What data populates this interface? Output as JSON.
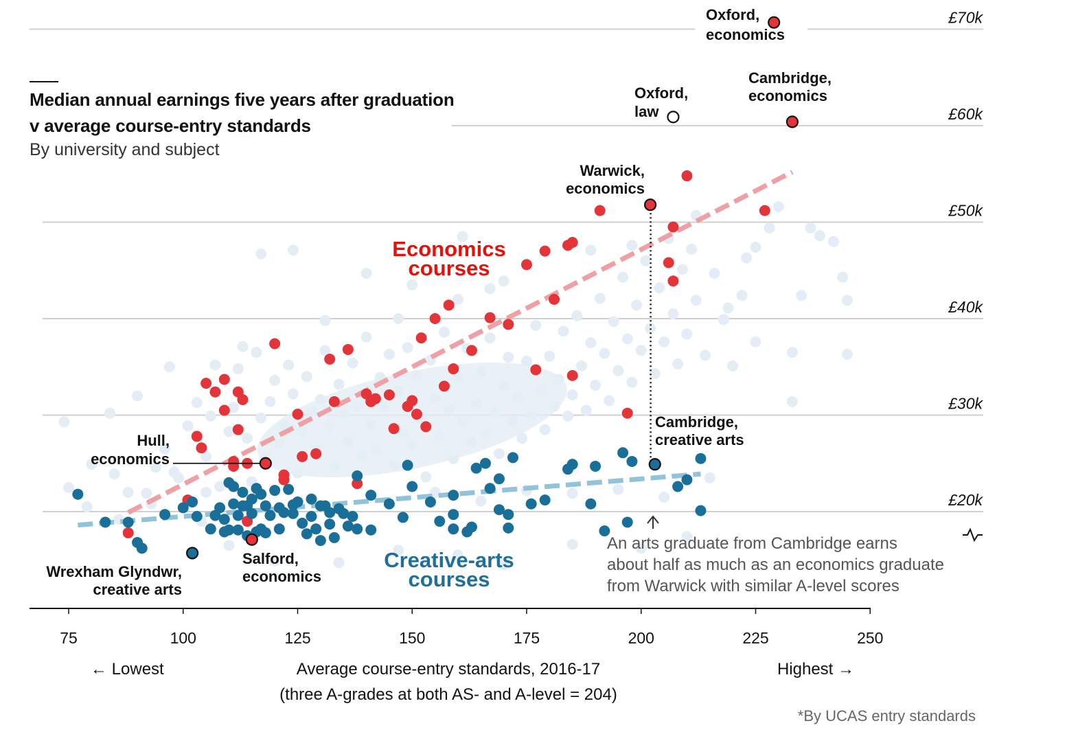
{
  "title": "Median annual earnings five years after graduation v average course-entry standards",
  "subtitle": "By university and subject",
  "colors": {
    "economics": "#e3343a",
    "creative_arts": "#1a6f98",
    "other": "#e4edf5",
    "economics_trend": "#eea0a4",
    "arts_trend": "#93c3d9",
    "grid": "#cfcfcf"
  },
  "chart_data": {
    "type": "scatter",
    "title": "Median annual earnings five years after graduation v average course-entry standards",
    "subtitle": "By university and subject",
    "xlabel": "Average course-entry standards, 2016-17",
    "xlabel_note": "(three A-grades at both AS- and A-level = 204)",
    "x_left_label": "← Lowest",
    "x_right_label": "Highest →",
    "xlim": [
      75,
      250
    ],
    "ylim": [
      10,
      72
    ],
    "x_ticks": [
      75,
      100,
      125,
      150,
      175,
      200,
      225,
      250
    ],
    "x_tick_labels": [
      "75",
      "100",
      "125",
      "150",
      "175",
      "200",
      "225",
      "250"
    ],
    "y_ticks": [
      20,
      30,
      40,
      50,
      60,
      70
    ],
    "y_tick_labels": [
      "£20k",
      "£30k",
      "£40k",
      "£50k",
      "£60k",
      "£70k"
    ],
    "y_unit": "£ thousands",
    "source_note": "*By UCAS entry standards",
    "series": [
      {
        "name": "Economics courses",
        "color": "#e3343a",
        "points": [
          [
            88,
            17.8
          ],
          [
            101,
            21.2
          ],
          [
            103,
            27.8
          ],
          [
            104,
            26.6
          ],
          [
            105,
            33.3
          ],
          [
            107,
            32.4
          ],
          [
            109,
            30.5
          ],
          [
            109,
            33.7
          ],
          [
            111,
            25.2
          ],
          [
            111,
            24.7
          ],
          [
            112,
            28.5
          ],
          [
            112,
            32.4
          ],
          [
            113,
            31.6
          ],
          [
            114,
            25.0
          ],
          [
            114,
            19.0
          ],
          [
            120,
            37.4
          ],
          [
            122,
            23.8
          ],
          [
            122,
            23.3
          ],
          [
            125,
            30.1
          ],
          [
            126,
            25.7
          ],
          [
            129,
            26.0
          ],
          [
            132,
            35.8
          ],
          [
            133,
            31.4
          ],
          [
            136,
            36.8
          ],
          [
            138,
            22.9
          ],
          [
            140,
            32.2
          ],
          [
            141,
            31.4
          ],
          [
            142,
            31.7
          ],
          [
            145,
            32.1
          ],
          [
            146,
            28.6
          ],
          [
            149,
            30.9
          ],
          [
            150,
            31.5
          ],
          [
            151,
            30.1
          ],
          [
            152,
            38.0
          ],
          [
            153,
            28.8
          ],
          [
            155,
            40.0
          ],
          [
            157,
            33.0
          ],
          [
            158,
            41.4
          ],
          [
            159,
            34.8
          ],
          [
            163,
            36.7
          ],
          [
            167,
            40.1
          ],
          [
            171,
            39.4
          ],
          [
            175,
            45.6
          ],
          [
            177,
            34.7
          ],
          [
            179,
            47.0
          ],
          [
            181,
            42.0
          ],
          [
            184,
            47.6
          ],
          [
            185,
            47.9
          ],
          [
            185,
            34.1
          ],
          [
            191,
            51.2
          ],
          [
            197,
            30.2
          ],
          [
            206,
            45.8
          ],
          [
            207,
            49.5
          ],
          [
            207,
            43.9
          ],
          [
            210,
            54.8
          ],
          [
            227,
            51.2
          ]
        ]
      },
      {
        "name": "Creative-arts courses",
        "color": "#1a6f98",
        "points": [
          [
            77,
            21.8
          ],
          [
            83,
            18.9
          ],
          [
            88,
            18.9
          ],
          [
            90,
            16.8
          ],
          [
            91,
            16.2
          ],
          [
            96,
            19.7
          ],
          [
            100,
            20.4
          ],
          [
            102,
            21.0
          ],
          [
            103,
            19.5
          ],
          [
            106,
            18.2
          ],
          [
            107,
            19.6
          ],
          [
            108,
            20.4
          ],
          [
            109,
            19.2
          ],
          [
            109,
            17.9
          ],
          [
            110,
            23.0
          ],
          [
            110,
            18.1
          ],
          [
            111,
            22.6
          ],
          [
            111,
            20.8
          ],
          [
            112,
            19.6
          ],
          [
            112,
            18.1
          ],
          [
            113,
            22.0
          ],
          [
            113,
            20.6
          ],
          [
            114,
            20.6
          ],
          [
            114,
            17.5
          ],
          [
            115,
            21.3
          ],
          [
            115,
            19.8
          ],
          [
            116,
            17.9
          ],
          [
            116,
            22.4
          ],
          [
            117,
            21.8
          ],
          [
            117,
            18.2
          ],
          [
            118,
            20.6
          ],
          [
            118,
            17.8
          ],
          [
            119,
            19.6
          ],
          [
            120,
            22.2
          ],
          [
            121,
            20.4
          ],
          [
            121,
            18.2
          ],
          [
            122,
            19.9
          ],
          [
            123,
            22.3
          ],
          [
            124,
            20.7
          ],
          [
            124,
            19.8
          ],
          [
            125,
            21.0
          ],
          [
            126,
            18.8
          ],
          [
            127,
            17.7
          ],
          [
            128,
            21.3
          ],
          [
            128,
            19.5
          ],
          [
            129,
            18.2
          ],
          [
            130,
            20.6
          ],
          [
            130,
            17.0
          ],
          [
            131,
            20.6
          ],
          [
            132,
            19.9
          ],
          [
            132,
            18.7
          ],
          [
            133,
            17.3
          ],
          [
            134,
            20.3
          ],
          [
            135,
            19.8
          ],
          [
            136,
            18.5
          ],
          [
            137,
            19.5
          ],
          [
            138,
            18.2
          ],
          [
            138,
            23.7
          ],
          [
            141,
            21.7
          ],
          [
            141,
            18.1
          ],
          [
            145,
            20.8
          ],
          [
            148,
            19.4
          ],
          [
            149,
            24.8
          ],
          [
            150,
            22.6
          ],
          [
            154,
            21.0
          ],
          [
            156,
            19.0
          ],
          [
            159,
            18.2
          ],
          [
            159,
            19.7
          ],
          [
            159,
            21.7
          ],
          [
            162,
            17.9
          ],
          [
            163,
            18.4
          ],
          [
            164,
            24.5
          ],
          [
            166,
            25.0
          ],
          [
            167,
            22.4
          ],
          [
            169,
            20.2
          ],
          [
            169,
            23.4
          ],
          [
            171,
            19.7
          ],
          [
            171,
            18.3
          ],
          [
            172,
            25.6
          ],
          [
            176,
            20.8
          ],
          [
            179,
            21.2
          ],
          [
            184,
            24.4
          ],
          [
            185,
            24.9
          ],
          [
            189,
            20.8
          ],
          [
            190,
            24.7
          ],
          [
            192,
            18.0
          ],
          [
            196,
            26.1
          ],
          [
            197,
            18.9
          ],
          [
            198,
            25.2
          ],
          [
            208,
            22.6
          ],
          [
            210,
            23.3
          ],
          [
            213,
            20.1
          ],
          [
            213,
            25.5
          ]
        ]
      }
    ],
    "background_points": [
      [
        94,
        24.6
      ],
      [
        97,
        35.0
      ],
      [
        101,
        28.9
      ],
      [
        103,
        31.3
      ],
      [
        105,
        25.7
      ],
      [
        106,
        29.9
      ],
      [
        107,
        35.2
      ],
      [
        108,
        22.6
      ],
      [
        110,
        28.3
      ],
      [
        111,
        30.8
      ],
      [
        112,
        34.8
      ],
      [
        113,
        37.1
      ],
      [
        114,
        27.6
      ],
      [
        115,
        23.1
      ],
      [
        116,
        36.5
      ],
      [
        117,
        29.7
      ],
      [
        118,
        25.7
      ],
      [
        119,
        31.4
      ],
      [
        120,
        33.6
      ],
      [
        121,
        27.0
      ],
      [
        122,
        29.0
      ],
      [
        123,
        35.2
      ],
      [
        124,
        32.2
      ],
      [
        125,
        24.0
      ],
      [
        126,
        28.2
      ],
      [
        127,
        34.0
      ],
      [
        128,
        30.4
      ],
      [
        129,
        26.6
      ],
      [
        130,
        31.6
      ],
      [
        131,
        36.7
      ],
      [
        132,
        28.9
      ],
      [
        133,
        24.6
      ],
      [
        134,
        33.2
      ],
      [
        135,
        30.1
      ],
      [
        136,
        27.3
      ],
      [
        137,
        35.4
      ],
      [
        138,
        31.0
      ],
      [
        139,
        25.8
      ],
      [
        140,
        38.1
      ],
      [
        141,
        29.0
      ],
      [
        142,
        26.4
      ],
      [
        143,
        33.9
      ],
      [
        144,
        30.9
      ],
      [
        145,
        36.3
      ],
      [
        146,
        24.8
      ],
      [
        147,
        32.5
      ],
      [
        148,
        28.1
      ],
      [
        149,
        37.0
      ],
      [
        150,
        26.9
      ],
      [
        151,
        34.1
      ],
      [
        152,
        29.6
      ],
      [
        153,
        23.6
      ],
      [
        154,
        35.7
      ],
      [
        155,
        31.8
      ],
      [
        156,
        27.8
      ],
      [
        157,
        38.6
      ],
      [
        158,
        30.6
      ],
      [
        159,
        25.5
      ],
      [
        160,
        33.8
      ],
      [
        161,
        29.3
      ],
      [
        162,
        36.9
      ],
      [
        163,
        27.2
      ],
      [
        164,
        31.2
      ],
      [
        165,
        34.5
      ],
      [
        166,
        28.0
      ],
      [
        167,
        38.0
      ],
      [
        168,
        30.3
      ],
      [
        169,
        26.0
      ],
      [
        170,
        33.0
      ],
      [
        171,
        36.0
      ],
      [
        172,
        29.4
      ],
      [
        173,
        31.9
      ],
      [
        174,
        27.6
      ],
      [
        175,
        35.6
      ],
      [
        176,
        30.0
      ],
      [
        177,
        39.3
      ],
      [
        178,
        32.6
      ],
      [
        179,
        28.5
      ],
      [
        180,
        36.1
      ],
      [
        181,
        30.9
      ],
      [
        182,
        33.7
      ],
      [
        183,
        38.7
      ],
      [
        184,
        29.9
      ],
      [
        185,
        32.1
      ],
      [
        186,
        40.3
      ],
      [
        187,
        35.1
      ],
      [
        188,
        30.5
      ],
      [
        189,
        37.5
      ],
      [
        190,
        33.1
      ],
      [
        191,
        42.1
      ],
      [
        192,
        36.4
      ],
      [
        193,
        31.5
      ],
      [
        194,
        39.7
      ],
      [
        195,
        34.6
      ],
      [
        196,
        44.3
      ],
      [
        197,
        37.9
      ],
      [
        198,
        33.4
      ],
      [
        199,
        41.4
      ],
      [
        200,
        36.7
      ],
      [
        201,
        46.0
      ],
      [
        202,
        39.0
      ],
      [
        203,
        34.3
      ],
      [
        204,
        43.2
      ],
      [
        205,
        37.6
      ],
      [
        206,
        48.3
      ],
      [
        207,
        40.5
      ],
      [
        208,
        35.3
      ],
      [
        209,
        45.1
      ],
      [
        210,
        38.4
      ],
      [
        211,
        47.2
      ],
      [
        212,
        41.9
      ],
      [
        214,
        36.2
      ],
      [
        216,
        44.7
      ],
      [
        218,
        39.9
      ],
      [
        220,
        35.1
      ],
      [
        222,
        42.4
      ],
      [
        225,
        37.6
      ],
      [
        225,
        47.4
      ],
      [
        228,
        49.4
      ],
      [
        230,
        51.6
      ],
      [
        233,
        36.5
      ],
      [
        233,
        31.4
      ],
      [
        235,
        42.4
      ],
      [
        237,
        49.4
      ],
      [
        239,
        48.6
      ],
      [
        242,
        48.0
      ],
      [
        244,
        44.3
      ],
      [
        245,
        41.9
      ],
      [
        245,
        36.3
      ],
      [
        117,
        46.7
      ],
      [
        124,
        47.1
      ],
      [
        161,
        48.5
      ],
      [
        84,
        30.2
      ],
      [
        90,
        32.0
      ],
      [
        96,
        26.5
      ],
      [
        88,
        22.0
      ],
      [
        93,
        20.8
      ],
      [
        99,
        23.5
      ],
      [
        105,
        22.0
      ],
      [
        75,
        22.5
      ],
      [
        79,
        20.5
      ],
      [
        85,
        23.9
      ],
      [
        104,
        19.0
      ],
      [
        110,
        16.5
      ],
      [
        120,
        14.9
      ],
      [
        134,
        14.7
      ],
      [
        147,
        16.0
      ],
      [
        160,
        15.5
      ],
      [
        170,
        14.5
      ],
      [
        185,
        16.6
      ],
      [
        200,
        16.2
      ],
      [
        210,
        17.4
      ],
      [
        131,
        39.8
      ],
      [
        147,
        40.0
      ],
      [
        167,
        43.1
      ],
      [
        189,
        47.1
      ],
      [
        198,
        47.6
      ],
      [
        212,
        50.7
      ],
      [
        219,
        41.1
      ],
      [
        223,
        46.3
      ],
      [
        74,
        29.3
      ],
      [
        80,
        24.9
      ],
      [
        86,
        19.2
      ],
      [
        92,
        21.9
      ],
      [
        98,
        24.1
      ],
      [
        155,
        22.0
      ],
      [
        165,
        21.1
      ],
      [
        175,
        22.2
      ],
      [
        185,
        21.9
      ],
      [
        195,
        22.3
      ],
      [
        205,
        21.5
      ],
      [
        215,
        23.5
      ],
      [
        140,
        44.7
      ],
      [
        150,
        43.5
      ],
      [
        160,
        42.0
      ],
      [
        170,
        43.9
      ]
    ],
    "trend_lines": [
      {
        "name": "Economics trend",
        "color": "#eea0a4",
        "from": [
          88,
          19.9
        ],
        "to": [
          233,
          55.2
        ]
      },
      {
        "name": "Creative-arts trend",
        "color": "#93c3d9",
        "from": [
          77,
          18.6
        ],
        "to": [
          213,
          23.9
        ]
      }
    ],
    "annotated_points": [
      {
        "label": [
          "Oxford,",
          "economics"
        ],
        "x": 229,
        "y": 70.7,
        "color": "#e3343a"
      },
      {
        "label": [
          "Cambridge,",
          "economics"
        ],
        "x": 233,
        "y": 60.4,
        "color": "#e3343a"
      },
      {
        "label": [
          "Oxford,",
          "law"
        ],
        "x": 207,
        "y": 60.9,
        "color": "#ffffff"
      },
      {
        "label": [
          "Warwick,",
          "economics"
        ],
        "x": 202,
        "y": 51.8,
        "color": "#e3343a"
      },
      {
        "label": [
          "Cambridge,",
          "creative arts"
        ],
        "x": 203,
        "y": 24.9,
        "color": "#1a6f98"
      },
      {
        "label": [
          "Hull,",
          "economics"
        ],
        "x": 118,
        "y": 25.0,
        "color": "#e3343a"
      },
      {
        "label": [
          "Salford,",
          "economics"
        ],
        "x": 115,
        "y": 17.1,
        "color": "#e3343a"
      },
      {
        "label": [
          "Wrexham Glyndwr,",
          "creative arts"
        ],
        "x": 102,
        "y": 15.7,
        "color": "#1a6f98"
      }
    ],
    "group_labels": {
      "economics": [
        "Economics",
        "courses"
      ],
      "creative_arts": [
        "Creative-arts",
        "courses"
      ]
    },
    "annotation_note": [
      "An arts graduate from Cambridge earns",
      "about half as much as an economics graduate",
      "from Warwick with similar A-level scores"
    ]
  }
}
